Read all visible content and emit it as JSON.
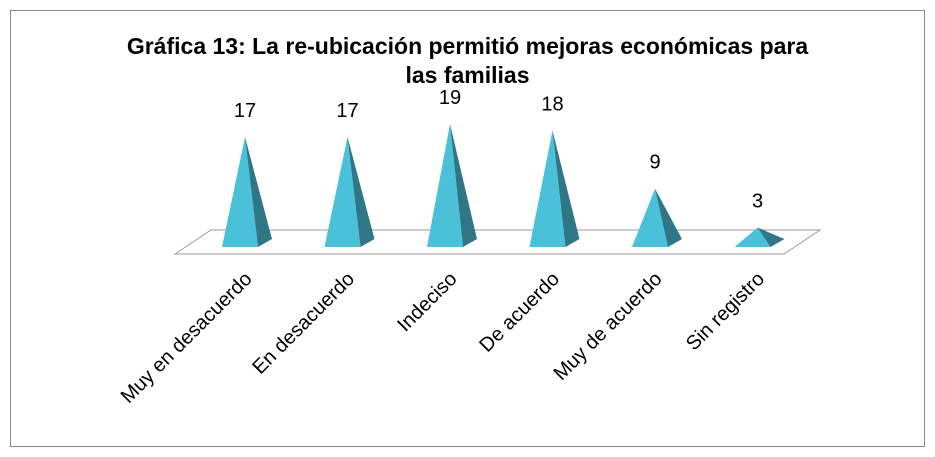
{
  "chart_data": {
    "type": "pyramid",
    "title": "Gráfica 13: La re-ubicación permitió mejoras económicas para las familias",
    "categories": [
      "Muy en desacuerdo",
      "En desacuerdo",
      "Indeciso",
      "De acuerdo",
      "Muy de acuerdo",
      "Sin registro"
    ],
    "values": [
      17,
      17,
      19,
      18,
      9,
      3
    ],
    "color": "#4bc0d9"
  }
}
